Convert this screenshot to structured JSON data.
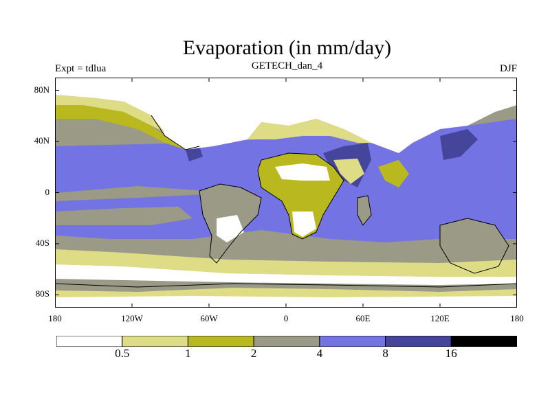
{
  "title": "Evaporation (in mm/day)",
  "subtitle": "GETECH_dan_4",
  "experiment": "Expt = tdlua",
  "season": "DJF",
  "map": {
    "lon_range": [
      -180,
      180
    ],
    "lat_range": [
      -90,
      90
    ],
    "lat_ticks": [
      {
        "label": "80N",
        "value": 80
      },
      {
        "label": "40N",
        "value": 40
      },
      {
        "label": "0",
        "value": 0
      },
      {
        "label": "40S",
        "value": -40
      },
      {
        "label": "80S",
        "value": -80
      }
    ],
    "lon_ticks": [
      {
        "label": "180",
        "value": -180
      },
      {
        "label": "120W",
        "value": -120
      },
      {
        "label": "60W",
        "value": -60
      },
      {
        "label": "0",
        "value": 0
      },
      {
        "label": "60E",
        "value": 60
      },
      {
        "label": "120E",
        "value": 120
      },
      {
        "label": "180",
        "value": 180
      }
    ]
  },
  "colorbar": {
    "colors": [
      "#ffffff",
      "#dedd85",
      "#b9b91f",
      "#9a9a86",
      "#7373e3",
      "#45459b",
      "#000000"
    ],
    "labels": [
      "0.5",
      "1",
      "2",
      "4",
      "8",
      "16"
    ]
  }
}
